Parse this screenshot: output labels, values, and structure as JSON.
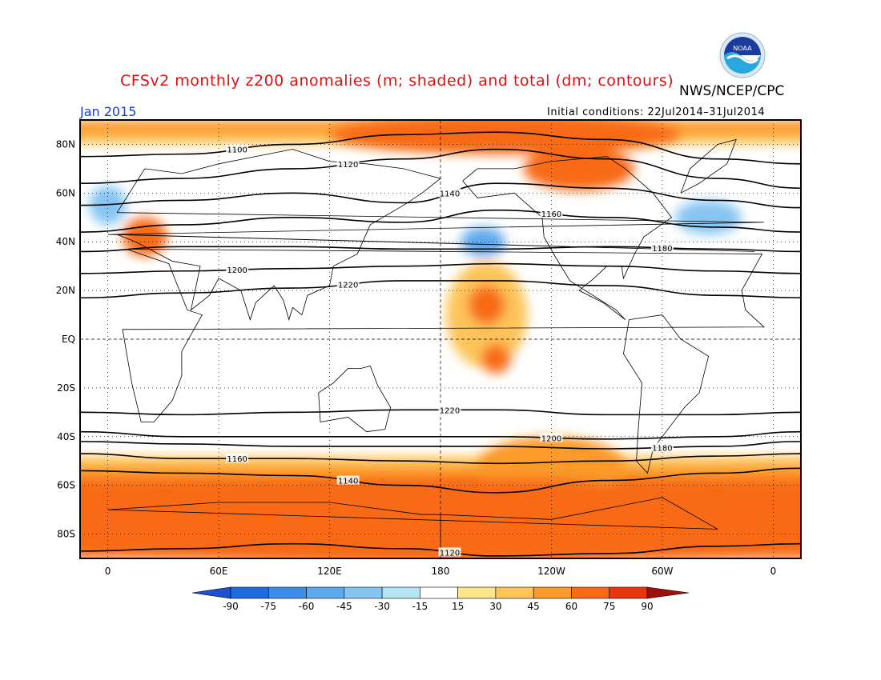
{
  "title": "CFSv2 monthly z200 anomalies (m; shaded) and total (dm; contours)",
  "agency": "NWS/NCEP/CPC",
  "logo_text": "NOAA",
  "month": "Jan 2015",
  "initial_conditions": "Initial conditions: 22Jul2014–31Jul2014",
  "lat_labels": [
    {
      "lat": 80,
      "label": "80N"
    },
    {
      "lat": 60,
      "label": "60N"
    },
    {
      "lat": 40,
      "label": "40N"
    },
    {
      "lat": 20,
      "label": "20N"
    },
    {
      "lat": 0,
      "label": "EQ"
    },
    {
      "lat": -20,
      "label": "20S"
    },
    {
      "lat": -40,
      "label": "40S"
    },
    {
      "lat": -60,
      "label": "60S"
    },
    {
      "lat": -80,
      "label": "80S"
    }
  ],
  "lon_labels": [
    {
      "lon": 0,
      "label": "0"
    },
    {
      "lon": 60,
      "label": "60E"
    },
    {
      "lon": 120,
      "label": "120E"
    },
    {
      "lon": 180,
      "label": "180"
    },
    {
      "lon": 240,
      "label": "120W"
    },
    {
      "lon": 300,
      "label": "60W"
    },
    {
      "lon": 360,
      "label": "0"
    }
  ],
  "colorbar": {
    "ticks": [
      "-90",
      "-75",
      "-60",
      "-45",
      "-30",
      "-15",
      "15",
      "30",
      "45",
      "60",
      "75",
      "90"
    ],
    "colors": [
      "#1e6be0",
      "#3c8ce8",
      "#5ea8ee",
      "#86c5f2",
      "#b4e4f4",
      "#ffffff",
      "#fde38a",
      "#fdc45a",
      "#fc9a2a",
      "#f86a16",
      "#e8360c",
      "#c01a0a"
    ],
    "low_end_color": "#1e50d0",
    "high_end_color": "#a0100a"
  },
  "contours": [
    {
      "label": "1100",
      "y": [
        75,
        76,
        80,
        84,
        85,
        82,
        74,
        72
      ]
    },
    {
      "label": "1120",
      "y": [
        64,
        66,
        70,
        74,
        78,
        74,
        66,
        62
      ]
    },
    {
      "label": "1140",
      "y": [
        55,
        57,
        60,
        56,
        64,
        62,
        57,
        54
      ]
    },
    {
      "label": "1160",
      "y": [
        44,
        47,
        50,
        48,
        53,
        50,
        46,
        44
      ]
    },
    {
      "label": "1180",
      "y": [
        36,
        38,
        38,
        37,
        37,
        38,
        37,
        36
      ]
    },
    {
      "label": "1200",
      "y": [
        27,
        28,
        29,
        30,
        31,
        30,
        28,
        27
      ]
    },
    {
      "label": "1220",
      "y": [
        17,
        19,
        21,
        24,
        24,
        22,
        18,
        17
      ]
    },
    {
      "label": "1220",
      "y": [
        -30,
        -31,
        -30,
        -29,
        -29,
        -31,
        -31,
        -30
      ]
    },
    {
      "label": "1200",
      "y": [
        -38,
        -40,
        -40,
        -40,
        -40,
        -41,
        -40,
        -38
      ]
    },
    {
      "label": "1180",
      "y": [
        -42,
        -43,
        -44,
        -44,
        -44,
        -45,
        -44,
        -42
      ]
    },
    {
      "label": "1160",
      "y": [
        -47,
        -49,
        -49,
        -50,
        -51,
        -50,
        -48,
        -47
      ]
    },
    {
      "label": "1140",
      "y": [
        -54,
        -55,
        -56,
        -60,
        -63,
        -58,
        -55,
        -53
      ]
    },
    {
      "label": "1120",
      "y": [
        -87,
        -86,
        -84,
        -86,
        -89,
        -88,
        -85,
        -84
      ]
    }
  ],
  "anomaly_areas": [
    {
      "lon": 215,
      "lat": 84,
      "rx": 95,
      "ry": 8,
      "value": 60
    },
    {
      "lon": 255,
      "lat": 70,
      "rx": 30,
      "ry": 9,
      "value": 60
    },
    {
      "lon": 20,
      "lat": 42,
      "rx": 12,
      "ry": 8,
      "value": 60
    },
    {
      "lon": 203,
      "lat": 40,
      "rx": 12,
      "ry": 6,
      "value": -45
    },
    {
      "lon": 325,
      "lat": 50,
      "rx": 18,
      "ry": 7,
      "value": -30
    },
    {
      "lon": 0,
      "lat": 55,
      "rx": 10,
      "ry": 8,
      "value": -30
    },
    {
      "lon": 205,
      "lat": 10,
      "rx": 22,
      "ry": 22,
      "value": 30
    },
    {
      "lon": 205,
      "lat": 14,
      "rx": 10,
      "ry": 8,
      "value": 60
    },
    {
      "lon": 210,
      "lat": -8,
      "rx": 8,
      "ry": 6,
      "value": 60
    },
    {
      "lon": 240,
      "lat": -52,
      "rx": 40,
      "ry": 12,
      "value": 45
    },
    {
      "lon": 180,
      "lat": -75,
      "rx": 200,
      "ry": 16,
      "value": 60
    },
    {
      "lon": 220,
      "lat": -65,
      "rx": 70,
      "ry": 8,
      "value": 60
    }
  ]
}
